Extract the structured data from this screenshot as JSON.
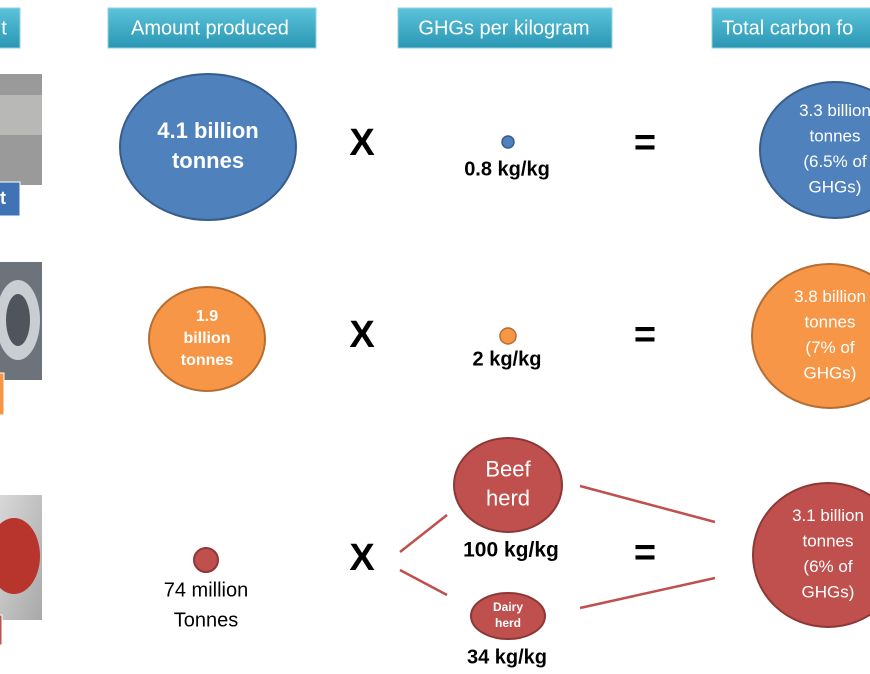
{
  "header": {
    "product": "t",
    "amount": "Amount produced",
    "ghg": "GHGs per kilogram",
    "total": "Total carbon fo"
  },
  "rows": [
    {
      "label": "t",
      "amount": [
        "4.1 billion",
        "tonnes"
      ],
      "times": "X",
      "ghg": "0.8 kg/kg",
      "equals": "=",
      "total": [
        "3.3 billion",
        "tonnes",
        "(6.5% of",
        "GHGs)"
      ]
    },
    {
      "amount": [
        "1.9",
        "billion",
        "tonnes"
      ],
      "times": "X",
      "ghg": "2 kg/kg",
      "equals": "=",
      "total": [
        "3.8 billion",
        "tonnes",
        "(7% of",
        "GHGs)"
      ]
    },
    {
      "amount": [
        "74 million",
        "Tonnes"
      ],
      "times": "X",
      "beef": {
        "name": [
          "Beef",
          "herd"
        ],
        "rate": "100 kg/kg"
      },
      "dairy": {
        "name": [
          "Dairy",
          "herd"
        ],
        "rate": "34 kg/kg"
      },
      "equals": "=",
      "total": [
        "3.1 billion",
        "tonnes",
        "(6% of",
        "GHGs)"
      ]
    }
  ]
}
